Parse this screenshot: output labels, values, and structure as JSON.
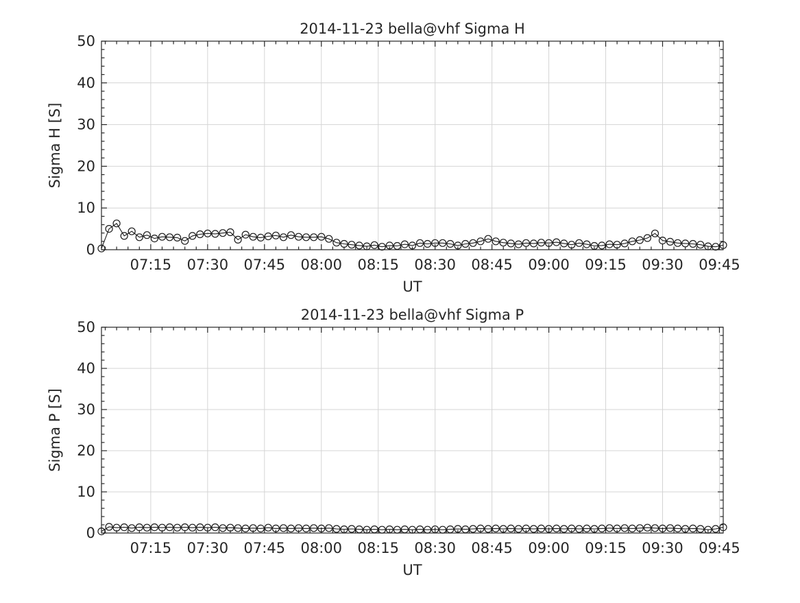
{
  "styles": {
    "background": "#ffffff",
    "axis_color": "#262626",
    "grid_color": "#d4d4d4",
    "text_color": "#262626",
    "line_color": "#1a1a1a"
  },
  "chart_data": [
    {
      "type": "line",
      "title": "2014-11-23  bella@vhf Sigma H",
      "xlabel": "UT",
      "ylabel": "Sigma H [S]",
      "ylim": [
        0,
        50
      ],
      "yticks": [
        0,
        10,
        20,
        30,
        40,
        50
      ],
      "y_minor_step": 2,
      "x_start": "07:02",
      "x_end": "09:46",
      "x_major_ticks": [
        "07:15",
        "07:30",
        "07:45",
        "08:00",
        "08:15",
        "08:30",
        "08:45",
        "09:00",
        "09:15",
        "09:30",
        "09:45"
      ],
      "x_minor_step_min": 3,
      "grid": true,
      "legend": null,
      "marker": "open-circle",
      "times": [
        "07:02",
        "07:04",
        "07:06",
        "07:08",
        "07:10",
        "07:12",
        "07:14",
        "07:16",
        "07:18",
        "07:20",
        "07:22",
        "07:24",
        "07:26",
        "07:28",
        "07:30",
        "07:32",
        "07:34",
        "07:36",
        "07:38",
        "07:40",
        "07:42",
        "07:44",
        "07:46",
        "07:48",
        "07:50",
        "07:52",
        "07:54",
        "07:56",
        "07:58",
        "08:00",
        "08:02",
        "08:04",
        "08:06",
        "08:08",
        "08:10",
        "08:12",
        "08:14",
        "08:16",
        "08:18",
        "08:20",
        "08:22",
        "08:24",
        "08:26",
        "08:28",
        "08:30",
        "08:32",
        "08:34",
        "08:36",
        "08:38",
        "08:40",
        "08:42",
        "08:44",
        "08:46",
        "08:48",
        "08:50",
        "08:52",
        "08:54",
        "08:56",
        "08:58",
        "09:00",
        "09:02",
        "09:04",
        "09:06",
        "09:08",
        "09:10",
        "09:12",
        "09:14",
        "09:16",
        "09:18",
        "09:20",
        "09:22",
        "09:24",
        "09:26",
        "09:28",
        "09:30",
        "09:32",
        "09:34",
        "09:36",
        "09:38",
        "09:40",
        "09:42",
        "09:44",
        "09:46"
      ],
      "values": [
        0.3,
        5.0,
        6.3,
        3.3,
        4.4,
        3.0,
        3.5,
        2.7,
        3.1,
        3.0,
        2.9,
        2.1,
        3.3,
        3.7,
        3.9,
        3.8,
        4.0,
        4.2,
        2.4,
        3.6,
        3.1,
        2.9,
        3.2,
        3.4,
        3.0,
        3.5,
        3.1,
        3.0,
        3.0,
        3.1,
        2.6,
        1.7,
        1.4,
        1.2,
        1.0,
        0.8,
        1.1,
        0.7,
        1.0,
        0.9,
        1.3,
        1.0,
        1.6,
        1.4,
        1.6,
        1.6,
        1.4,
        1.0,
        1.4,
        1.6,
        2.0,
        2.6,
        2.0,
        1.7,
        1.5,
        1.3,
        1.6,
        1.5,
        1.7,
        1.6,
        1.8,
        1.5,
        1.2,
        1.6,
        1.3,
        0.9,
        1.0,
        1.3,
        1.2,
        1.5,
        2.0,
        2.3,
        2.8,
        3.9,
        2.2,
        1.9,
        1.6,
        1.5,
        1.4,
        1.2,
        0.8,
        0.7,
        1.1
      ]
    },
    {
      "type": "line",
      "title": "2014-11-23  bella@vhf Sigma P",
      "xlabel": "UT",
      "ylabel": "Sigma P [S]",
      "ylim": [
        0,
        50
      ],
      "yticks": [
        0,
        10,
        20,
        30,
        40,
        50
      ],
      "y_minor_step": 2,
      "x_start": "07:02",
      "x_end": "09:46",
      "x_major_ticks": [
        "07:15",
        "07:30",
        "07:45",
        "08:00",
        "08:15",
        "08:30",
        "08:45",
        "09:00",
        "09:15",
        "09:30",
        "09:45"
      ],
      "x_minor_step_min": 3,
      "grid": true,
      "legend": null,
      "marker": "open-circle",
      "times": [
        "07:02",
        "07:04",
        "07:06",
        "07:08",
        "07:10",
        "07:12",
        "07:14",
        "07:16",
        "07:18",
        "07:20",
        "07:22",
        "07:24",
        "07:26",
        "07:28",
        "07:30",
        "07:32",
        "07:34",
        "07:36",
        "07:38",
        "07:40",
        "07:42",
        "07:44",
        "07:46",
        "07:48",
        "07:50",
        "07:52",
        "07:54",
        "07:56",
        "07:58",
        "08:00",
        "08:02",
        "08:04",
        "08:06",
        "08:08",
        "08:10",
        "08:12",
        "08:14",
        "08:16",
        "08:18",
        "08:20",
        "08:22",
        "08:24",
        "08:26",
        "08:28",
        "08:30",
        "08:32",
        "08:34",
        "08:36",
        "08:38",
        "08:40",
        "08:42",
        "08:44",
        "08:46",
        "08:48",
        "08:50",
        "08:52",
        "08:54",
        "08:56",
        "08:58",
        "09:00",
        "09:02",
        "09:04",
        "09:06",
        "09:08",
        "09:10",
        "09:12",
        "09:14",
        "09:16",
        "09:18",
        "09:20",
        "09:22",
        "09:24",
        "09:26",
        "09:28",
        "09:30",
        "09:32",
        "09:34",
        "09:36",
        "09:38",
        "09:40",
        "09:42",
        "09:44",
        "09:46"
      ],
      "values": [
        0.4,
        1.5,
        1.3,
        1.4,
        1.2,
        1.4,
        1.3,
        1.4,
        1.3,
        1.4,
        1.3,
        1.4,
        1.3,
        1.4,
        1.3,
        1.4,
        1.2,
        1.3,
        1.2,
        1.1,
        1.2,
        1.1,
        1.3,
        1.1,
        1.2,
        1.1,
        1.2,
        1.1,
        1.2,
        1.1,
        1.2,
        1.0,
        0.9,
        1.0,
        0.9,
        0.8,
        0.9,
        0.8,
        0.9,
        0.8,
        0.9,
        0.8,
        0.9,
        0.8,
        0.9,
        0.8,
        0.9,
        1.0,
        0.9,
        1.0,
        1.1,
        1.0,
        1.1,
        1.0,
        1.1,
        1.0,
        1.1,
        1.0,
        1.1,
        1.0,
        1.1,
        1.0,
        1.1,
        1.0,
        1.1,
        1.0,
        1.1,
        1.2,
        1.1,
        1.2,
        1.1,
        1.2,
        1.3,
        1.2,
        1.1,
        1.2,
        1.1,
        1.0,
        1.1,
        1.0,
        0.8,
        1.0,
        1.4
      ]
    }
  ]
}
